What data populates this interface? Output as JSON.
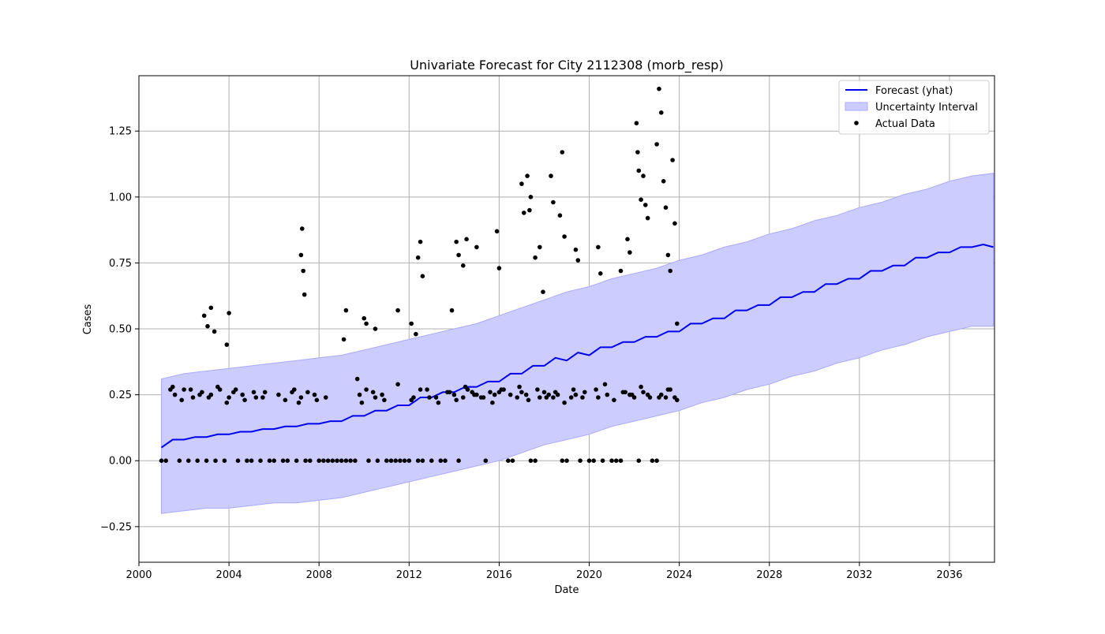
{
  "chart_data": {
    "type": "line",
    "title": "Univariate Forecast for City 2112308 (morb_resp)",
    "xlabel": "Date",
    "ylabel": "Cases",
    "xlim": [
      2000.0,
      2038.0
    ],
    "ylim": [
      -0.385,
      1.46
    ],
    "x_ticks": [
      2000,
      2004,
      2008,
      2012,
      2016,
      2020,
      2024,
      2028,
      2032,
      2036
    ],
    "x_tick_labels": [
      "2000",
      "2004",
      "2008",
      "2012",
      "2016",
      "2020",
      "2024",
      "2028",
      "2032",
      "2036"
    ],
    "y_ticks": [
      -0.25,
      0.0,
      0.25,
      0.5,
      0.75,
      1.0,
      1.25
    ],
    "y_tick_labels": [
      "−0.25",
      "0.00",
      "0.25",
      "0.50",
      "0.75",
      "1.00",
      "1.25"
    ],
    "grid": true,
    "legend_position": "top-right",
    "colors": {
      "forecast": "#0000ee",
      "band_fill": "#ccccff",
      "band_edge": "#aaaaff",
      "actual": "#000000",
      "grid": "#b0b0b0"
    },
    "series": [
      {
        "name": "Forecast (yhat)",
        "kind": "line",
        "x": [
          2001.0,
          2001.5,
          2002.0,
          2002.5,
          2003.0,
          2003.5,
          2004.0,
          2004.5,
          2005.0,
          2005.5,
          2006.0,
          2006.5,
          2007.0,
          2007.5,
          2008.0,
          2008.5,
          2009.0,
          2009.5,
          2010.0,
          2010.5,
          2011.0,
          2011.5,
          2012.0,
          2012.5,
          2013.0,
          2013.5,
          2014.0,
          2014.5,
          2015.0,
          2015.5,
          2016.0,
          2016.5,
          2017.0,
          2017.5,
          2018.0,
          2018.5,
          2019.0,
          2019.5,
          2020.0,
          2020.5,
          2021.0,
          2021.5,
          2022.0,
          2022.5,
          2023.0,
          2023.5,
          2024.0,
          2024.5,
          2025.0,
          2025.5,
          2026.0,
          2026.5,
          2027.0,
          2027.5,
          2028.0,
          2028.5,
          2029.0,
          2029.5,
          2030.0,
          2030.5,
          2031.0,
          2031.5,
          2032.0,
          2032.5,
          2033.0,
          2033.5,
          2034.0,
          2034.5,
          2035.0,
          2035.5,
          2036.0,
          2036.5,
          2037.0,
          2037.5,
          2037.95
        ],
        "y": [
          0.05,
          0.08,
          0.08,
          0.09,
          0.09,
          0.1,
          0.1,
          0.11,
          0.11,
          0.12,
          0.12,
          0.13,
          0.13,
          0.14,
          0.14,
          0.15,
          0.15,
          0.17,
          0.17,
          0.19,
          0.19,
          0.21,
          0.21,
          0.24,
          0.24,
          0.26,
          0.26,
          0.28,
          0.28,
          0.3,
          0.3,
          0.33,
          0.33,
          0.36,
          0.36,
          0.39,
          0.38,
          0.41,
          0.4,
          0.43,
          0.43,
          0.45,
          0.45,
          0.47,
          0.47,
          0.49,
          0.49,
          0.52,
          0.52,
          0.54,
          0.54,
          0.57,
          0.57,
          0.59,
          0.59,
          0.62,
          0.62,
          0.64,
          0.64,
          0.67,
          0.67,
          0.69,
          0.69,
          0.72,
          0.72,
          0.74,
          0.74,
          0.77,
          0.77,
          0.79,
          0.79,
          0.81,
          0.81,
          0.82,
          0.81
        ]
      },
      {
        "name": "Uncertainty Interval",
        "kind": "band",
        "x": [
          2001.0,
          2002.0,
          2003.0,
          2004.0,
          2005.0,
          2006.0,
          2007.0,
          2008.0,
          2009.0,
          2010.0,
          2011.0,
          2012.0,
          2013.0,
          2014.0,
          2015.0,
          2016.0,
          2017.0,
          2018.0,
          2019.0,
          2020.0,
          2021.0,
          2022.0,
          2023.0,
          2024.0,
          2025.0,
          2026.0,
          2027.0,
          2028.0,
          2029.0,
          2030.0,
          2031.0,
          2032.0,
          2033.0,
          2034.0,
          2035.0,
          2036.0,
          2037.0,
          2037.95
        ],
        "lower": [
          -0.2,
          -0.19,
          -0.18,
          -0.18,
          -0.17,
          -0.16,
          -0.16,
          -0.15,
          -0.14,
          -0.12,
          -0.1,
          -0.08,
          -0.06,
          -0.04,
          -0.02,
          0.0,
          0.03,
          0.06,
          0.08,
          0.1,
          0.13,
          0.15,
          0.17,
          0.19,
          0.22,
          0.24,
          0.27,
          0.29,
          0.32,
          0.34,
          0.37,
          0.39,
          0.42,
          0.44,
          0.47,
          0.49,
          0.51,
          0.51
        ],
        "upper": [
          0.31,
          0.33,
          0.34,
          0.35,
          0.36,
          0.37,
          0.38,
          0.39,
          0.4,
          0.42,
          0.44,
          0.46,
          0.48,
          0.5,
          0.52,
          0.55,
          0.58,
          0.61,
          0.64,
          0.66,
          0.69,
          0.71,
          0.73,
          0.76,
          0.78,
          0.81,
          0.83,
          0.86,
          0.88,
          0.91,
          0.93,
          0.96,
          0.98,
          1.01,
          1.03,
          1.06,
          1.08,
          1.09
        ]
      },
      {
        "name": "Actual Data",
        "kind": "scatter",
        "x": [
          2001.0,
          2001.2,
          2001.4,
          2001.6,
          2001.8,
          2002.0,
          2002.2,
          2002.4,
          2002.6,
          2002.8,
          2003.0,
          2003.2,
          2003.4,
          2003.6,
          2003.8,
          2004.0,
          2004.2,
          2004.4,
          2004.6,
          2004.8,
          2005.0,
          2005.2,
          2005.4,
          2005.6,
          2005.8,
          2006.0,
          2006.2,
          2006.4,
          2006.6,
          2006.8,
          2007.0,
          2007.2,
          2007.4,
          2007.6,
          2007.8,
          2008.0,
          2008.2,
          2008.4,
          2008.6,
          2008.8,
          2009.0,
          2009.2,
          2009.4,
          2009.6,
          2009.8,
          2010.2,
          2010.4,
          2010.6,
          2010.8,
          2011.0,
          2011.2,
          2011.4,
          2011.6,
          2011.8,
          2012.0,
          2012.2,
          2012.4,
          2012.6,
          2012.8,
          2013.0,
          2013.2,
          2013.4,
          2013.6,
          2013.8,
          2014.0,
          2014.2,
          2014.4,
          2014.6,
          2014.8,
          2015.0,
          2015.2,
          2015.4,
          2015.6,
          2015.8,
          2016.0,
          2016.2,
          2016.4,
          2016.6,
          2016.8,
          2017.0,
          2017.2,
          2017.4,
          2017.6,
          2017.8,
          2018.0,
          2018.2,
          2018.4,
          2018.6,
          2018.8,
          2019.0,
          2019.2,
          2019.4,
          2019.6,
          2019.8,
          2020.0,
          2020.2,
          2020.4,
          2020.6,
          2020.8,
          2021.0,
          2021.2,
          2021.4,
          2021.6,
          2021.8,
          2022.0,
          2022.2,
          2022.4,
          2022.6,
          2022.8,
          2023.0,
          2023.2,
          2023.4,
          2023.6,
          2023.8,
          2001.5,
          2001.9,
          2002.3,
          2002.7,
          2003.1,
          2003.5,
          2003.9,
          2004.3,
          2004.7,
          2005.1,
          2005.5,
          2006.5,
          2006.9,
          2007.1,
          2007.5,
          2007.9,
          2008.3,
          2009.7,
          2009.9,
          2010.1,
          2010.5,
          2010.9,
          2011.5,
          2012.1,
          2012.5,
          2012.9,
          2013.3,
          2013.7,
          2014.1,
          2014.5,
          2014.9,
          2015.3,
          2015.7,
          2016.1,
          2016.5,
          2016.9,
          2017.3,
          2017.7,
          2018.1,
          2018.5,
          2018.9,
          2019.3,
          2019.7,
          2020.3,
          2020.7,
          2021.1,
          2021.5,
          2021.9,
          2022.3,
          2022.7,
          2023.1,
          2023.5,
          2023.9,
          2002.9,
          2003.05,
          2003.2,
          2003.35,
          2003.9,
          2004.0,
          2007.2,
          2007.25,
          2007.3,
          2007.35,
          2009.1,
          2009.2,
          2010.0,
          2010.1,
          2010.5,
          2011.5,
          2012.1,
          2012.3,
          2012.4,
          2012.5,
          2012.6,
          2013.9,
          2014.1,
          2014.2,
          2014.4,
          2014.55,
          2015.0,
          2015.9,
          2016.0,
          2017.0,
          2017.1,
          2017.25,
          2017.35,
          2017.4,
          2017.6,
          2017.8,
          2017.95,
          2018.3,
          2018.4,
          2018.7,
          2018.8,
          2018.9,
          2019.4,
          2019.5,
          2020.4,
          2020.5,
          2021.4,
          2021.7,
          2021.8,
          2022.1,
          2022.15,
          2022.2,
          2022.3,
          2022.4,
          2022.5,
          2022.6,
          2023.0,
          2023.1,
          2023.2,
          2023.3,
          2023.4,
          2023.5,
          2023.6,
          2023.7,
          2023.8,
          2023.9
        ],
        "y": [
          0.0,
          0.0,
          0.27,
          0.25,
          0.0,
          0.27,
          0.0,
          0.24,
          0.0,
          0.26,
          0.0,
          0.25,
          0.0,
          0.27,
          0.0,
          0.24,
          0.26,
          0.0,
          0.25,
          0.0,
          0.0,
          0.24,
          0.0,
          0.26,
          0.0,
          0.0,
          0.25,
          0.0,
          0.0,
          0.26,
          0.0,
          0.24,
          0.0,
          0.0,
          0.25,
          0.0,
          0.0,
          0.0,
          0.0,
          0.0,
          0.0,
          0.0,
          0.0,
          0.0,
          0.25,
          0.0,
          0.26,
          0.0,
          0.25,
          0.0,
          0.0,
          0.0,
          0.0,
          0.0,
          0.0,
          0.24,
          0.0,
          0.0,
          0.27,
          0.0,
          0.24,
          0.0,
          0.0,
          0.26,
          0.25,
          0.0,
          0.24,
          0.27,
          0.26,
          0.25,
          0.24,
          0.0,
          0.26,
          0.25,
          0.26,
          0.27,
          0.0,
          0.0,
          0.24,
          0.26,
          0.25,
          0.0,
          0.0,
          0.24,
          0.26,
          0.25,
          0.24,
          0.25,
          0.0,
          0.0,
          0.24,
          0.25,
          0.0,
          0.26,
          0.0,
          0.0,
          0.24,
          0.0,
          0.25,
          0.0,
          0.0,
          0.0,
          0.26,
          0.25,
          0.24,
          0.0,
          0.26,
          0.25,
          0.0,
          0.0,
          0.25,
          0.24,
          0.27,
          0.24,
          0.28,
          0.23,
          0.27,
          0.25,
          0.24,
          0.28,
          0.22,
          0.27,
          0.23,
          0.26,
          0.24,
          0.23,
          0.27,
          0.22,
          0.26,
          0.23,
          0.24,
          0.31,
          0.22,
          0.27,
          0.24,
          0.23,
          0.29,
          0.23,
          0.27,
          0.24,
          0.22,
          0.26,
          0.23,
          0.28,
          0.25,
          0.24,
          0.22,
          0.27,
          0.25,
          0.28,
          0.23,
          0.27,
          0.24,
          0.26,
          0.22,
          0.27,
          0.24,
          0.27,
          0.29,
          0.23,
          0.26,
          0.25,
          0.28,
          0.24,
          0.24,
          0.27,
          0.23,
          0.55,
          0.51,
          0.58,
          0.49,
          0.44,
          0.56,
          0.78,
          0.88,
          0.72,
          0.63,
          0.46,
          0.57,
          0.54,
          0.52,
          0.5,
          0.57,
          0.52,
          0.48,
          0.77,
          0.83,
          0.7,
          0.57,
          0.83,
          0.78,
          0.74,
          0.84,
          0.81,
          0.87,
          0.73,
          1.05,
          0.94,
          1.08,
          0.95,
          1.0,
          0.77,
          0.81,
          0.64,
          1.08,
          0.98,
          0.93,
          1.17,
          0.85,
          0.8,
          0.76,
          0.81,
          0.71,
          0.72,
          0.84,
          0.79,
          1.28,
          1.17,
          1.1,
          0.99,
          1.08,
          0.97,
          0.92,
          1.2,
          1.41,
          1.32,
          1.06,
          0.96,
          0.78,
          0.72,
          1.14,
          0.9,
          0.52
        ]
      }
    ]
  }
}
